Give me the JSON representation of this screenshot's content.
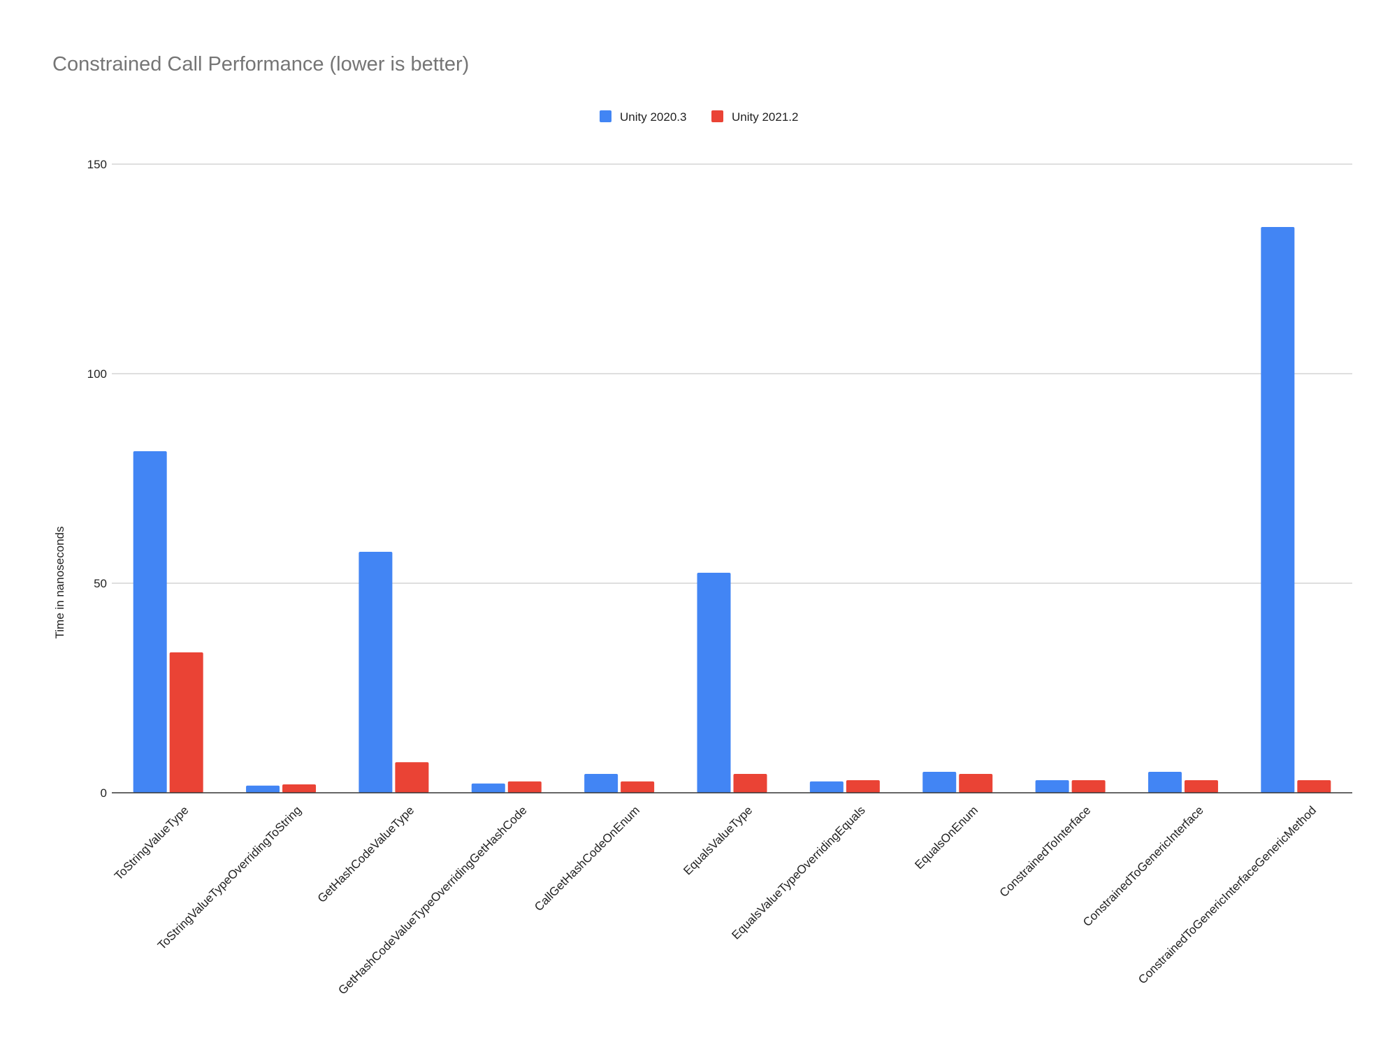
{
  "chart_data": {
    "type": "bar",
    "title": "Constrained Call Performance (lower is better)",
    "xlabel": "",
    "ylabel": "Time in nanoseconds",
    "ylim": [
      0,
      150
    ],
    "yticks": [
      0,
      50,
      100,
      150
    ],
    "grid": true,
    "legend_position": "top-center",
    "categories": [
      "ToStringValueType",
      "ToStringValueTypeOverridingToString",
      "GetHashCodeValueType",
      "GetHashCodeValueTypeOverridingGetHashCode",
      "CallGetHashCodeOnEnum",
      "EqualsValueType",
      "EqualsValueTypeOverridingEquals",
      "EqualsOnEnum",
      "ConstrainedToInterface",
      "ConstrainedToGenericInterface",
      "ConstrainedToGenericInterfaceGenericMethod"
    ],
    "series": [
      {
        "name": "Unity 2020.3",
        "color": "#4285f4",
        "values": [
          81.5,
          1.7,
          57.5,
          2.2,
          4.5,
          52.5,
          2.7,
          5,
          3,
          5,
          135
        ]
      },
      {
        "name": "Unity 2021.2",
        "color": "#ea4335",
        "values": [
          33.5,
          2,
          7.3,
          2.7,
          2.7,
          4.5,
          3,
          4.5,
          3,
          3,
          3
        ]
      }
    ]
  }
}
